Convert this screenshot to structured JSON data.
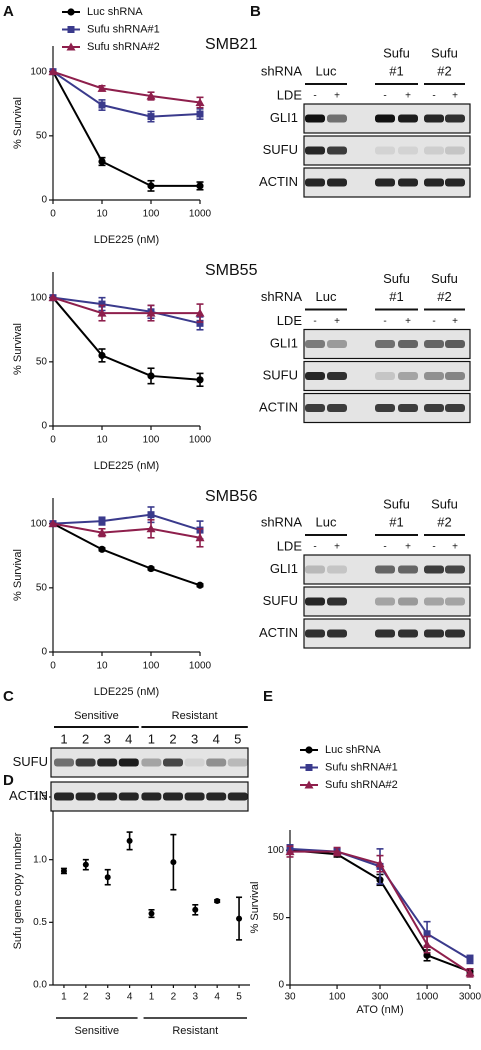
{
  "panel_labels": [
    "A",
    "B",
    "C",
    "D",
    "E"
  ],
  "chart_data": [
    {
      "type": "line",
      "title": "SMB21",
      "x_label": "LDE225 (nM)",
      "y_label": "% Survival",
      "legend": "top-left",
      "categories": [
        "0",
        "10",
        "100",
        "1000"
      ],
      "ylim": [
        0,
        120
      ],
      "yticks": [
        0,
        50,
        100
      ],
      "series": [
        {
          "name": "Luc shRNA",
          "color": "#000000",
          "marker": "circle",
          "values": [
            100,
            30,
            11,
            11
          ],
          "errors": [
            0,
            3,
            4,
            3
          ]
        },
        {
          "name": "Sufu shRNA#1",
          "color": "#3a3a8c",
          "marker": "square",
          "values": [
            100,
            74,
            65,
            67
          ],
          "errors": [
            0,
            4,
            4,
            4
          ]
        },
        {
          "name": "Sufu shRNA#2",
          "color": "#8e1f4c",
          "marker": "triangle",
          "values": [
            100,
            87,
            81,
            76
          ],
          "errors": [
            0,
            2,
            3,
            4
          ]
        }
      ]
    },
    {
      "type": "line",
      "title": "SMB55",
      "x_label": "LDE225 (nM)",
      "y_label": "% Survival",
      "categories": [
        "0",
        "10",
        "100",
        "1000"
      ],
      "ylim": [
        0,
        120
      ],
      "yticks": [
        0,
        50,
        100
      ],
      "series": [
        {
          "color": "#000000",
          "marker": "circle",
          "values": [
            100,
            55,
            39,
            36
          ],
          "errors": [
            0,
            5,
            6,
            5
          ]
        },
        {
          "color": "#3a3a8c",
          "marker": "square",
          "values": [
            100,
            95,
            89,
            80
          ],
          "errors": [
            0,
            5,
            5,
            5
          ]
        },
        {
          "color": "#8e1f4c",
          "marker": "triangle",
          "values": [
            100,
            88,
            88,
            88
          ],
          "errors": [
            0,
            6,
            6,
            7
          ]
        }
      ]
    },
    {
      "type": "line",
      "title": "SMB56",
      "x_label": "LDE225 (nM)",
      "y_label": "% Survival",
      "categories": [
        "0",
        "10",
        "100",
        "1000"
      ],
      "ylim": [
        0,
        120
      ],
      "yticks": [
        0,
        50,
        100
      ],
      "series": [
        {
          "color": "#000000",
          "marker": "circle",
          "values": [
            100,
            80,
            65,
            52
          ],
          "errors": [
            0,
            1,
            1,
            1
          ]
        },
        {
          "color": "#3a3a8c",
          "marker": "square",
          "values": [
            100,
            102,
            107,
            95
          ],
          "errors": [
            0,
            3,
            6,
            7
          ]
        },
        {
          "color": "#8e1f4c",
          "marker": "triangle",
          "values": [
            100,
            93,
            96,
            89
          ],
          "errors": [
            0,
            3,
            7,
            7
          ]
        }
      ]
    },
    {
      "type": "dot",
      "y_label": "Sufu gene copy number",
      "color": "#000000",
      "groups": [
        {
          "label": "Sensitive",
          "categories": [
            "1",
            "2",
            "3",
            "4"
          ]
        },
        {
          "label": "Resistant",
          "categories": [
            "1",
            "2",
            "3",
            "4",
            "5"
          ]
        }
      ],
      "values": [
        0.91,
        0.96,
        0.86,
        1.15,
        0.57,
        0.98,
        0.6,
        0.67,
        0.53
      ],
      "errors": [
        0.02,
        0.04,
        0.06,
        0.07,
        0.03,
        0.22,
        0.04,
        0.01,
        0.17
      ],
      "ylim": [
        0,
        1.5
      ],
      "yticks": [
        {
          "value": 0,
          "label": "0.0"
        },
        {
          "value": 0.5,
          "label": "0.5"
        },
        {
          "value": 1,
          "label": "1.0"
        },
        {
          "value": 1.5,
          "label": "1.5"
        }
      ]
    },
    {
      "type": "line",
      "x_label": "ATO (nM)",
      "y_label": "% Survival",
      "legend": "top-left",
      "xscale": "log",
      "x": [
        30,
        100,
        300,
        1000,
        3000
      ],
      "xlim": [
        30,
        3000
      ],
      "xticks": [
        30,
        100,
        300,
        1000,
        3000
      ],
      "ylim": [
        0,
        115
      ],
      "yticks": [
        0,
        50,
        100
      ],
      "series": [
        {
          "name": "Luc shRNA",
          "color": "#000000",
          "marker": "circle",
          "values": [
            100,
            97,
            78,
            22,
            10
          ],
          "errors": [
            3,
            2,
            4,
            4,
            2
          ]
        },
        {
          "name": "Sufu shRNA#1",
          "color": "#3a3a8c",
          "marker": "square",
          "values": [
            101,
            99,
            88,
            38,
            19
          ],
          "errors": [
            3,
            2,
            13,
            9,
            3
          ]
        },
        {
          "name": "Sufu shRNA#2",
          "color": "#8e1f4c",
          "marker": "triangle",
          "values": [
            99,
            99,
            90,
            30,
            9
          ],
          "errors": [
            4,
            3,
            6,
            6,
            3
          ]
        }
      ]
    }
  ],
  "blots": {
    "B": [
      {
        "shRNA_label": "shRNA",
        "groups": [
          {
            "label": [
              "Luc"
            ]
          },
          {
            "label": [
              "Sufu",
              "#1"
            ]
          },
          {
            "label": [
              "Sufu",
              "#2"
            ]
          }
        ],
        "treatment_label": "LDE",
        "treatment": [
          "-",
          "+",
          "-",
          "+",
          "-",
          "+"
        ],
        "rows": [
          "GLI1",
          "SUFU",
          "ACTIN"
        ]
      },
      {
        "shRNA_label": "shRNA",
        "groups": [
          {
            "label": [
              "Luc"
            ]
          },
          {
            "label": [
              "Sufu",
              "#1"
            ]
          },
          {
            "label": [
              "Sufu",
              "#2"
            ]
          }
        ],
        "treatment_label": "LDE",
        "treatment": [
          "-",
          "+",
          "-",
          "+",
          "-",
          "+"
        ],
        "rows": [
          "GLI1",
          "SUFU",
          "ACTIN"
        ]
      },
      {
        "shRNA_label": "shRNA",
        "groups": [
          {
            "label": [
              "Luc"
            ]
          },
          {
            "label": [
              "Sufu",
              "#1"
            ]
          },
          {
            "label": [
              "Sufu",
              "#2"
            ]
          }
        ],
        "treatment_label": "LDE",
        "treatment": [
          "-",
          "+",
          "-",
          "+",
          "-",
          "+"
        ],
        "rows": [
          "GLI1",
          "SUFU",
          "ACTIN"
        ]
      }
    ],
    "C": {
      "groups": [
        {
          "label": "Sensitive",
          "lanes": [
            "1",
            "2",
            "3",
            "4"
          ]
        },
        {
          "label": "Resistant",
          "lanes": [
            "1",
            "2",
            "3",
            "4",
            "5"
          ]
        }
      ],
      "rows": [
        "SUFU",
        "ACTIN"
      ]
    }
  }
}
